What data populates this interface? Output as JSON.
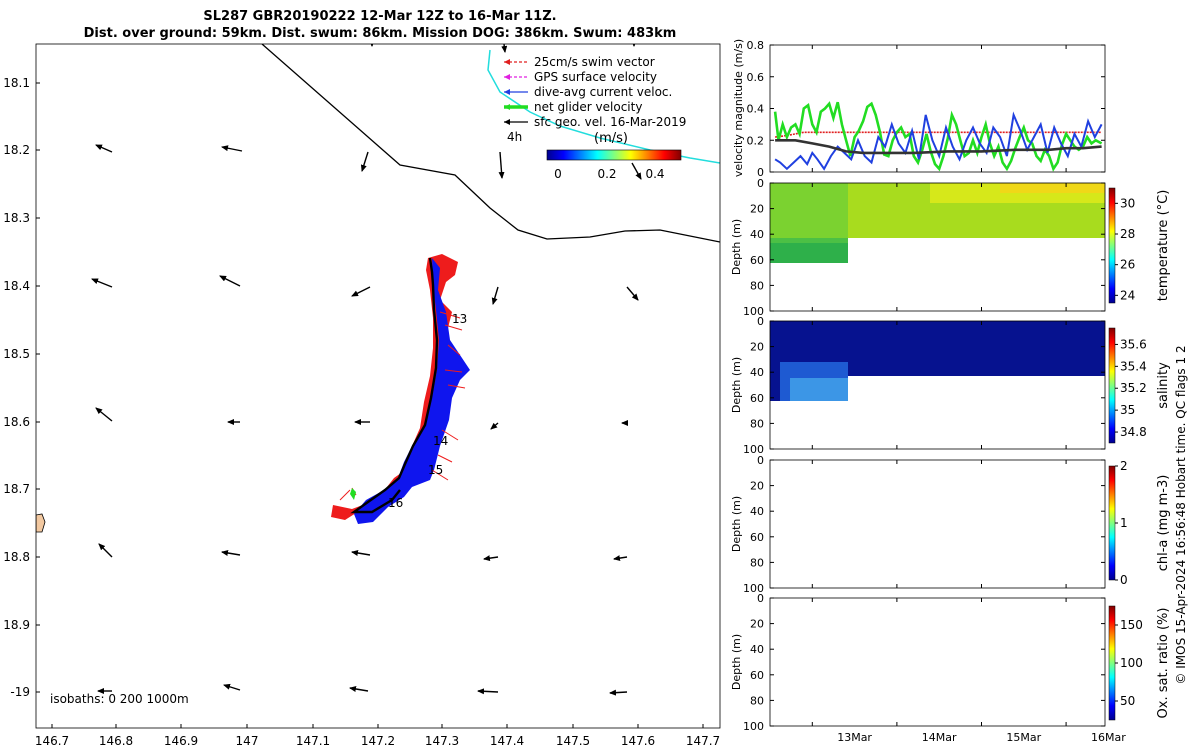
{
  "header": {
    "title_line1": "SL287 GBR20190222 12-Mar 12Z to 16-Mar 11Z.",
    "title_line2": "Dist. over ground: 59km. Dist. swum: 86km. Mission DOG: 386km. Swum: 483km"
  },
  "map": {
    "lon_ticks": [
      "146.7",
      "146.8",
      "146.9",
      "147",
      "147.1",
      "147.2",
      "147.3",
      "147.4",
      "147.5",
      "147.6",
      "147.7"
    ],
    "lat_ticks": [
      "18.1",
      "18.2",
      "18.3",
      "18.4",
      "18.5",
      "18.6",
      "18.7",
      "18.8",
      "18.9",
      "-19"
    ],
    "legend": [
      {
        "label": "25cm/s swim vector",
        "color": "#e02020"
      },
      {
        "label": "GPS surface velocity",
        "color": "#e020e0"
      },
      {
        "label": "dive-avg current veloc.",
        "color": "#2040e0"
      },
      {
        "label": "net glider velocity",
        "color": "#22dd22"
      },
      {
        "label": "sfc geo. vel. 16-Mar-2019",
        "color": "#000000"
      }
    ],
    "scale_label": "4h",
    "colorbar_unit": "(m/s)",
    "colorbar_ticks": [
      "0",
      "0.2",
      "0.4"
    ],
    "day_markers": [
      "13",
      "14",
      "15",
      "16"
    ],
    "isobaths_label": "isobaths: 0   200  1000m"
  },
  "chart_data": [
    {
      "type": "line",
      "ylabel": "velocity magnitude (m/s)",
      "ylim": [
        0,
        0.8
      ],
      "yticks": [
        "0",
        "0.2",
        "0.4",
        "0.6",
        "0.8"
      ],
      "xlim_days": [
        12.5,
        16.46
      ],
      "series": [
        {
          "name": "25cm/s swim vector",
          "color": "#e02020",
          "x": [
            12.56,
            12.7,
            12.9,
            13.1,
            13.3,
            13.5,
            13.7,
            13.9,
            14.1,
            14.3,
            14.5,
            14.7,
            14.9,
            15.1,
            15.3,
            15.5,
            15.7,
            15.9,
            16.1,
            16.3,
            16.42
          ],
          "values": [
            0.22,
            0.23,
            0.25,
            0.25,
            0.25,
            0.25,
            0.25,
            0.25,
            0.25,
            0.25,
            0.25,
            0.25,
            0.25,
            0.25,
            0.25,
            0.25,
            0.25,
            0.25,
            0.25,
            0.25,
            0.25
          ]
        },
        {
          "name": "net glider velocity",
          "color": "#22dd22",
          "x": [
            12.56,
            12.6,
            12.65,
            12.7,
            12.75,
            12.8,
            12.85,
            12.9,
            12.95,
            13.0,
            13.05,
            13.1,
            13.15,
            13.2,
            13.25,
            13.3,
            13.35,
            13.4,
            13.45,
            13.5,
            13.55,
            13.6,
            13.65,
            13.7,
            13.75,
            13.8,
            13.85,
            13.9,
            13.95,
            14.0,
            14.05,
            14.1,
            14.15,
            14.2,
            14.25,
            14.3,
            14.35,
            14.4,
            14.45,
            14.5,
            14.55,
            14.6,
            14.65,
            14.7,
            14.75,
            14.8,
            14.85,
            14.9,
            14.95,
            15.0,
            15.05,
            15.1,
            15.15,
            15.2,
            15.25,
            15.3,
            15.35,
            15.4,
            15.45,
            15.5,
            15.55,
            15.6,
            15.65,
            15.7,
            15.75,
            15.8,
            15.85,
            15.9,
            15.95,
            16.0,
            16.05,
            16.1,
            16.15,
            16.2,
            16.25,
            16.3,
            16.35,
            16.42
          ],
          "values": [
            0.38,
            0.2,
            0.3,
            0.22,
            0.28,
            0.3,
            0.24,
            0.4,
            0.42,
            0.3,
            0.25,
            0.38,
            0.4,
            0.43,
            0.34,
            0.44,
            0.3,
            0.2,
            0.1,
            0.22,
            0.26,
            0.32,
            0.41,
            0.43,
            0.36,
            0.25,
            0.11,
            0.1,
            0.2,
            0.25,
            0.28,
            0.22,
            0.24,
            0.1,
            0.06,
            0.14,
            0.24,
            0.13,
            0.05,
            0.02,
            0.1,
            0.21,
            0.36,
            0.3,
            0.2,
            0.1,
            0.12,
            0.2,
            0.12,
            0.22,
            0.3,
            0.18,
            0.1,
            0.16,
            0.06,
            0.02,
            0.07,
            0.15,
            0.22,
            0.28,
            0.2,
            0.18,
            0.1,
            0.07,
            0.14,
            0.1,
            0.02,
            0.06,
            0.17,
            0.24,
            0.2,
            0.16,
            0.14,
            0.16,
            0.22,
            0.18,
            0.2,
            0.18
          ]
        },
        {
          "name": "dive-avg current veloc.",
          "color": "#2040e0",
          "x": [
            12.56,
            12.62,
            12.7,
            12.78,
            12.86,
            12.94,
            13.0,
            13.06,
            13.14,
            13.22,
            13.3,
            13.38,
            13.46,
            13.54,
            13.62,
            13.7,
            13.78,
            13.86,
            13.94,
            14.02,
            14.1,
            14.18,
            14.26,
            14.34,
            14.42,
            14.5,
            14.58,
            14.66,
            14.74,
            14.82,
            14.9,
            14.98,
            15.06,
            15.14,
            15.22,
            15.3,
            15.38,
            15.46,
            15.54,
            15.62,
            15.7,
            15.78,
            15.86,
            15.94,
            16.02,
            16.1,
            16.18,
            16.26,
            16.34,
            16.42
          ],
          "values": [
            0.08,
            0.06,
            0.02,
            0.06,
            0.1,
            0.05,
            0.12,
            0.08,
            0.02,
            0.1,
            0.16,
            0.12,
            0.08,
            0.2,
            0.1,
            0.06,
            0.22,
            0.16,
            0.3,
            0.18,
            0.12,
            0.26,
            0.08,
            0.36,
            0.2,
            0.1,
            0.28,
            0.16,
            0.08,
            0.2,
            0.28,
            0.18,
            0.12,
            0.28,
            0.22,
            0.1,
            0.36,
            0.26,
            0.14,
            0.22,
            0.3,
            0.12,
            0.28,
            0.18,
            0.1,
            0.24,
            0.16,
            0.32,
            0.22,
            0.3
          ]
        },
        {
          "name": "sfc geo. vel. 16-Mar-2019",
          "color": "#333333",
          "x": [
            12.56,
            12.8,
            13.0,
            13.2,
            13.4,
            13.6,
            13.8,
            14.0,
            14.2,
            14.6,
            15.0,
            15.4,
            15.8,
            16.0,
            16.2,
            16.42
          ],
          "values": [
            0.2,
            0.2,
            0.18,
            0.16,
            0.13,
            0.12,
            0.12,
            0.12,
            0.12,
            0.13,
            0.13,
            0.14,
            0.14,
            0.15,
            0.15,
            0.16
          ]
        }
      ]
    },
    {
      "type": "heatmap",
      "ylabel": "Depth (m)",
      "colorbar_label": "temperature (°C)",
      "colorbar_ticks": [
        "24",
        "26",
        "28",
        "30"
      ],
      "clim": [
        23.5,
        31
      ],
      "ylim": [
        0,
        100
      ],
      "yticks": [
        "0",
        "20",
        "40",
        "60",
        "80",
        "100"
      ],
      "coverage": [
        {
          "from_day": 12.5,
          "to_day": 13.45,
          "max_depth": 62
        },
        {
          "from_day": 13.45,
          "to_day": 16.46,
          "max_depth": 42
        }
      ],
      "values_deep": 26.8,
      "values_shallow": 28.6,
      "values_surface_late": 29.8
    },
    {
      "type": "heatmap",
      "ylabel": "Depth (m)",
      "colorbar_label": "salinity",
      "colorbar_ticks": [
        "34.8",
        "35",
        "35.2",
        "35.4",
        "35.6"
      ],
      "clim": [
        34.7,
        35.75
      ],
      "ylim": [
        0,
        100
      ],
      "yticks": [
        "0",
        "20",
        "40",
        "60",
        "80",
        "100"
      ],
      "coverage": [
        {
          "from_day": 12.5,
          "to_day": 13.45,
          "max_depth": 62
        },
        {
          "from_day": 13.45,
          "to_day": 16.46,
          "max_depth": 42
        }
      ],
      "values_main": 34.76,
      "values_deep": 35.0
    },
    {
      "type": "heatmap",
      "ylabel": "Depth (m)",
      "colorbar_label": "chl-a (mg m-3)",
      "colorbar_ticks": [
        "0",
        "1",
        "2"
      ],
      "clim": [
        0,
        2
      ],
      "ylim": [
        0,
        100
      ],
      "yticks": [
        "0",
        "20",
        "40",
        "60",
        "80",
        "100"
      ]
    },
    {
      "type": "heatmap",
      "ylabel": "Depth (m)",
      "colorbar_label": "Ox. sat. ratio (%)",
      "colorbar_ticks": [
        "50",
        "100",
        "150"
      ],
      "clim": [
        25,
        175
      ],
      "ylim": [
        0,
        100
      ],
      "yticks": [
        "0",
        "20",
        "40",
        "60",
        "80",
        "100"
      ],
      "xticks": [
        "13Mar",
        "14Mar",
        "15Mar",
        "16Mar"
      ]
    }
  ],
  "footer": {
    "side_label": "© IMOS 15-Apr-2024 16:56:48 Hobart time. QC flags 1  2"
  }
}
